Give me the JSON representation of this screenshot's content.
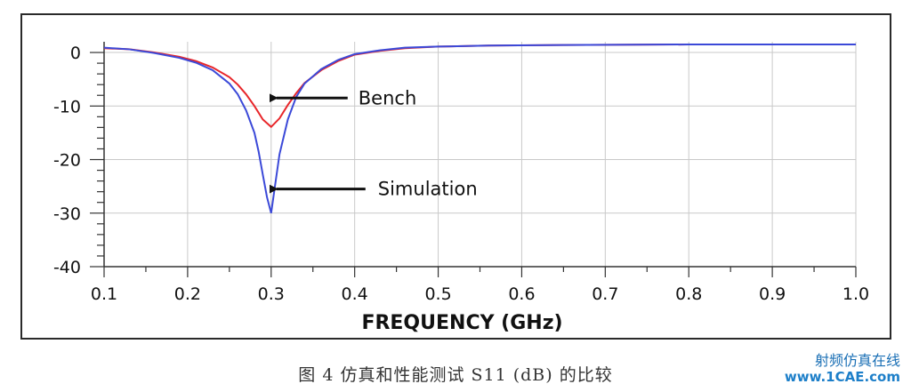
{
  "chart_data": {
    "type": "line",
    "xlabel": "FREQUENCY (GHz)",
    "ylabel": "",
    "xlim": [
      0.1,
      1.0
    ],
    "ylim": [
      -40,
      2
    ],
    "x_ticks": [
      "0.1",
      "0.2",
      "0.3",
      "0.4",
      "0.5",
      "0.6",
      "0.7",
      "0.8",
      "0.9",
      "1.0"
    ],
    "y_ticks": [
      "0",
      "-10",
      "-20",
      "-30",
      "-40"
    ],
    "grid": true,
    "series": [
      {
        "name": "Bench",
        "color": "#e8262a",
        "x": [
          0.1,
          0.13,
          0.16,
          0.19,
          0.21,
          0.23,
          0.25,
          0.26,
          0.27,
          0.28,
          0.29,
          0.3,
          0.31,
          0.32,
          0.33,
          0.34,
          0.36,
          0.38,
          0.4,
          0.43,
          0.46,
          0.5,
          0.56,
          0.65,
          0.8,
          1.0
        ],
        "y": [
          0.8,
          0.6,
          0.0,
          -0.8,
          -1.6,
          -2.8,
          -4.6,
          -6.0,
          -7.8,
          -10.0,
          -12.5,
          -13.9,
          -12.3,
          -9.8,
          -7.6,
          -5.7,
          -3.3,
          -1.6,
          -0.4,
          0.3,
          0.8,
          1.1,
          1.3,
          1.4,
          1.5,
          1.5
        ]
      },
      {
        "name": "Simulation",
        "color": "#3b49d8",
        "x": [
          0.1,
          0.13,
          0.16,
          0.19,
          0.21,
          0.23,
          0.25,
          0.26,
          0.27,
          0.28,
          0.285,
          0.29,
          0.295,
          0.3,
          0.305,
          0.31,
          0.32,
          0.33,
          0.34,
          0.36,
          0.38,
          0.4,
          0.43,
          0.46,
          0.5,
          0.56,
          0.65,
          0.8,
          1.0
        ],
        "y": [
          0.9,
          0.6,
          -0.1,
          -1.0,
          -1.9,
          -3.3,
          -5.8,
          -7.8,
          -10.8,
          -15.0,
          -18.5,
          -22.8,
          -27.0,
          -30.0,
          -24.5,
          -19.0,
          -12.5,
          -8.3,
          -5.8,
          -3.1,
          -1.4,
          -0.3,
          0.4,
          0.9,
          1.1,
          1.3,
          1.4,
          1.5,
          1.5
        ]
      }
    ],
    "annotations": [
      {
        "text": "Bench",
        "series": "Bench",
        "x": 0.3,
        "y": -8.5
      },
      {
        "text": "Simulation",
        "series": "Simulation",
        "x": 0.3,
        "y": -25.5
      }
    ]
  },
  "caption": "图 4  仿真和性能测试 S11 (dB) 的比较",
  "watermark": {
    "title": "射频仿真在线",
    "site": "www.1CAE.com"
  }
}
